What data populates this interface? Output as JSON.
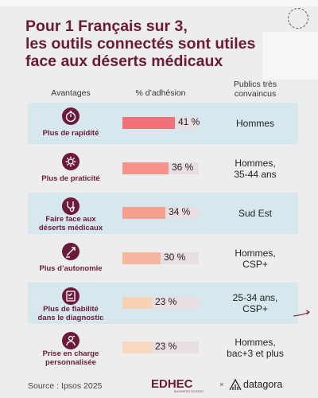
{
  "title_lines": [
    "Pour 1 Français sur 3,",
    "les outils connectés sont utiles",
    "face aux déserts médicaux"
  ],
  "headers": {
    "advantages": "Avantages",
    "adhesion": "% d’adhésion",
    "publics_line1": "Publics très",
    "publics_line2": "convaincus"
  },
  "chart_data": {
    "type": "bar",
    "orientation": "horizontal",
    "title": "Pour 1 Français sur 3, les outils connectés sont utiles face aux déserts médicaux",
    "xlim": [
      0,
      60
    ],
    "categories": [
      "Plus de rapidité",
      "Plus de praticité",
      "Faire face aux déserts médicaux",
      "Plus d’autonomie",
      "Plus de fiabilité dans le diagnostic",
      "Prise en charge personnalisée"
    ],
    "values": [
      41,
      36,
      34,
      30,
      23,
      23
    ],
    "value_labels": [
      "41 %",
      "36 %",
      "34 %",
      "30 %",
      "23 %",
      "23 %"
    ]
  },
  "rows": [
    {
      "label_lines": [
        "Plus de rapidité"
      ],
      "icon": "stopwatch-icon",
      "public_lines": [
        "Hommes"
      ],
      "color": "#f2707a"
    },
    {
      "label_lines": [
        "Plus de praticité"
      ],
      "icon": "gear-icon",
      "public_lines": [
        "Hommes,",
        "35-44 ans"
      ],
      "color": "#f5928c"
    },
    {
      "label_lines": [
        "Faire face aux",
        "déserts médicaux"
      ],
      "icon": "stethoscope-icon",
      "public_lines": [
        "Sud Est"
      ],
      "color": "#f6a08f"
    },
    {
      "label_lines": [
        "Plus d’autonomie"
      ],
      "icon": "hand-icon",
      "public_lines": [
        "Hommes,",
        "CSP+"
      ],
      "color": "#f7b79f"
    },
    {
      "label_lines": [
        "Plus de fiabilité",
        "dans le diagnostic"
      ],
      "icon": "checklist-icon",
      "public_lines": [
        "25-34 ans,",
        "CSP+"
      ],
      "color": "#f9d2b4"
    },
    {
      "label_lines": [
        "Prise en charge",
        "personnalisée"
      ],
      "icon": "person-heart-icon",
      "public_lines": [
        "Hommes,",
        "bac+3 et plus"
      ],
      "color": "#fad8bd"
    }
  ],
  "source": "Source : Ipsos 2025",
  "logos": {
    "edhec": "EDHEC",
    "edhec_sub": "BUSINESS SCHOOL",
    "separator": "×",
    "datagora": "datagora"
  }
}
